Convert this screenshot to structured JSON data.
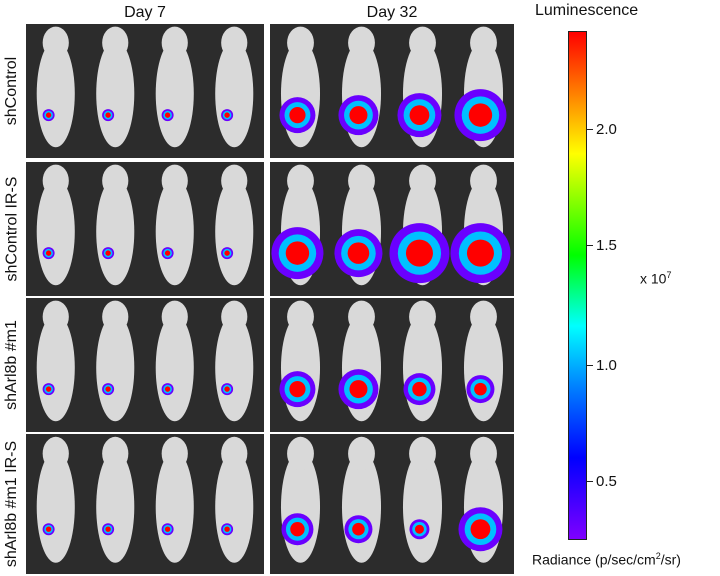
{
  "columns": [
    "Day 7",
    "Day 32"
  ],
  "rows": [
    "shControl",
    "shControl IR-S",
    "shArl8b #m1",
    "shArl8b #m1 IR-S"
  ],
  "scale": {
    "title": "Luminescence",
    "ticks": [
      "2.0",
      "1.5",
      "1.0",
      "0.5"
    ],
    "multiplier": "x 10",
    "multiplier_exp": "7",
    "unit_prefix": "Radiance (p/sec/cm",
    "unit_exp": "2",
    "unit_suffix": "/sr)"
  },
  "colors": {
    "panel_bg": "#2c2c2c",
    "mouse": "#d9d9d9",
    "signal_low": "#6a00ff",
    "signal_mid": "#00c0ff",
    "signal_high": "#ff0000"
  }
}
